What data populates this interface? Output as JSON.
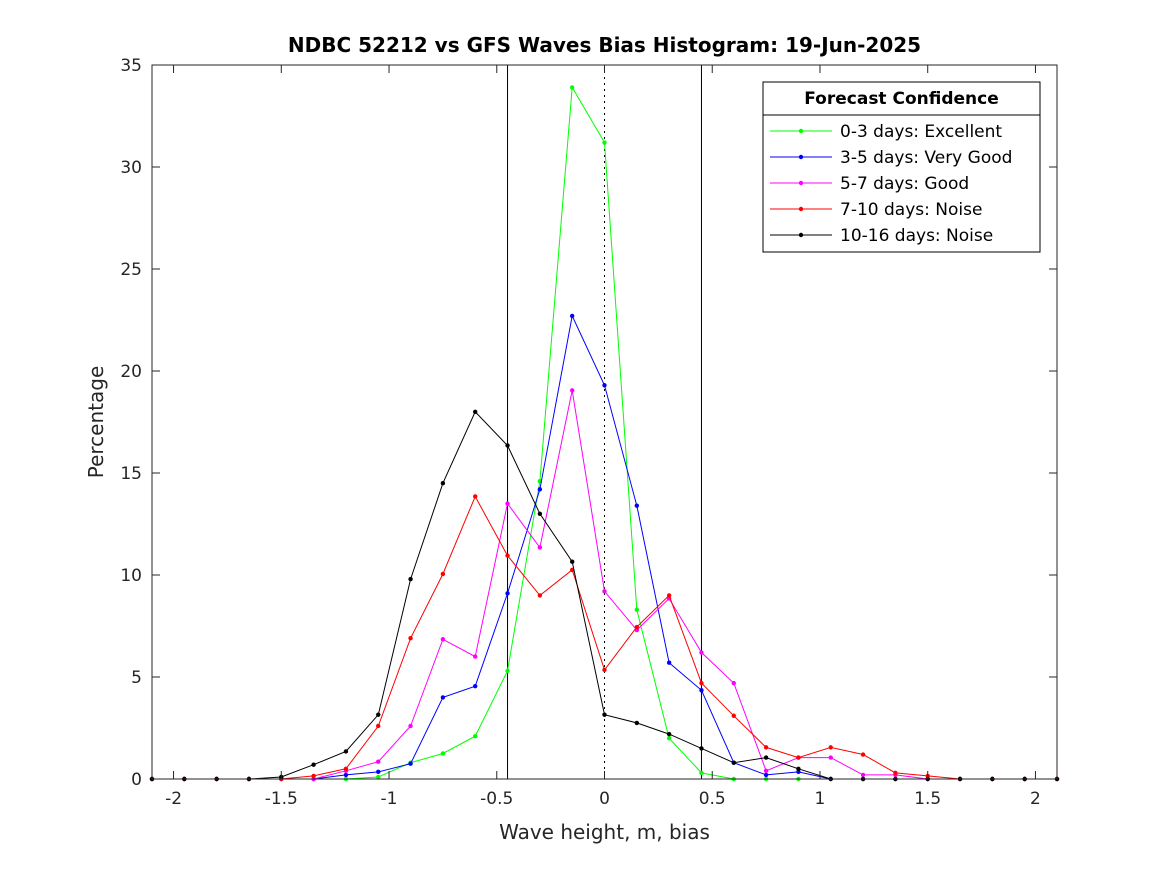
{
  "chart_data": {
    "type": "line",
    "title": "NDBC 52212 vs GFS Waves Bias Histogram: 19-Jun-2025",
    "xlabel": "Wave height, m, bias",
    "ylabel": "Percentage",
    "xlim": [
      -2.1,
      2.1
    ],
    "ylim": [
      0,
      35
    ],
    "x_ticks": [
      -2,
      -1.5,
      -1,
      -0.5,
      0,
      0.5,
      1,
      1.5,
      2
    ],
    "x_tick_labels": [
      "-2",
      "-1.5",
      "-1",
      "-0.5",
      "0",
      "0.5",
      "1",
      "1.5",
      "2"
    ],
    "y_ticks": [
      0,
      5,
      10,
      15,
      20,
      25,
      30,
      35
    ],
    "y_tick_labels": [
      "0",
      "5",
      "10",
      "15",
      "20",
      "25",
      "30",
      "35"
    ],
    "grid": false,
    "reference_lines": [
      {
        "x": -0.45,
        "style": "solid",
        "color": "#000000"
      },
      {
        "x": 0,
        "style": "dotted",
        "color": "#000000"
      },
      {
        "x": 0.45,
        "style": "solid",
        "color": "#000000"
      }
    ],
    "legend": {
      "title": "Forecast Confidence",
      "placement": "top-right"
    },
    "x": [
      -2.1,
      -1.95,
      -1.8,
      -1.65,
      -1.5,
      -1.35,
      -1.2,
      -1.05,
      -0.9,
      -0.75,
      -0.6,
      -0.45,
      -0.3,
      -0.15,
      0,
      0.15,
      0.3,
      0.45,
      0.6,
      0.75,
      0.9,
      1.05,
      1.2,
      1.35,
      1.5,
      1.65,
      1.8,
      1.95,
      2.1
    ],
    "series": [
      {
        "name": "0-3 days: Excellent",
        "color": "#00ff00",
        "values": [
          0,
          0,
          0,
          0,
          0,
          0,
          0,
          0.1,
          0.8,
          1.25,
          2.1,
          5.3,
          14.6,
          33.9,
          31.2,
          8.3,
          2.0,
          0.3,
          0,
          0,
          0,
          0,
          0,
          0,
          0,
          0,
          0,
          0,
          0
        ]
      },
      {
        "name": "3-5 days: Very Good",
        "color": "#0000ff",
        "values": [
          0,
          0,
          0,
          0,
          0,
          0,
          0.2,
          0.35,
          0.75,
          4.0,
          4.55,
          9.1,
          14.2,
          22.7,
          19.3,
          13.4,
          5.7,
          4.35,
          0.8,
          0.2,
          0.35,
          0,
          0,
          0,
          0,
          0,
          0,
          0,
          0
        ]
      },
      {
        "name": "5-7 days: Good",
        "color": "#ff00ff",
        "values": [
          0,
          0,
          0,
          0,
          0,
          0,
          0.4,
          0.85,
          2.6,
          6.85,
          6.0,
          13.5,
          11.35,
          19.05,
          9.2,
          7.3,
          8.85,
          6.2,
          4.7,
          0.4,
          1.05,
          1.05,
          0.2,
          0.2,
          0,
          0,
          0,
          0,
          0
        ]
      },
      {
        "name": "7-10 days: Noise",
        "color": "#ff0000",
        "values": [
          0,
          0,
          0,
          0,
          0,
          0.15,
          0.5,
          2.6,
          6.9,
          10.05,
          13.85,
          10.95,
          9.0,
          10.25,
          5.35,
          7.45,
          9.0,
          4.7,
          3.1,
          1.55,
          1.05,
          1.55,
          1.2,
          0.3,
          0.15,
          0,
          0,
          0,
          0
        ]
      },
      {
        "name": "10-16 days: Noise",
        "color": "#000000",
        "values": [
          0,
          0,
          0,
          0,
          0.1,
          0.7,
          1.35,
          3.15,
          9.8,
          14.5,
          18.0,
          16.35,
          13.0,
          10.65,
          3.15,
          2.75,
          2.2,
          1.5,
          0.8,
          1.05,
          0.5,
          0,
          0,
          0,
          0,
          0,
          0,
          0,
          0
        ]
      }
    ]
  }
}
